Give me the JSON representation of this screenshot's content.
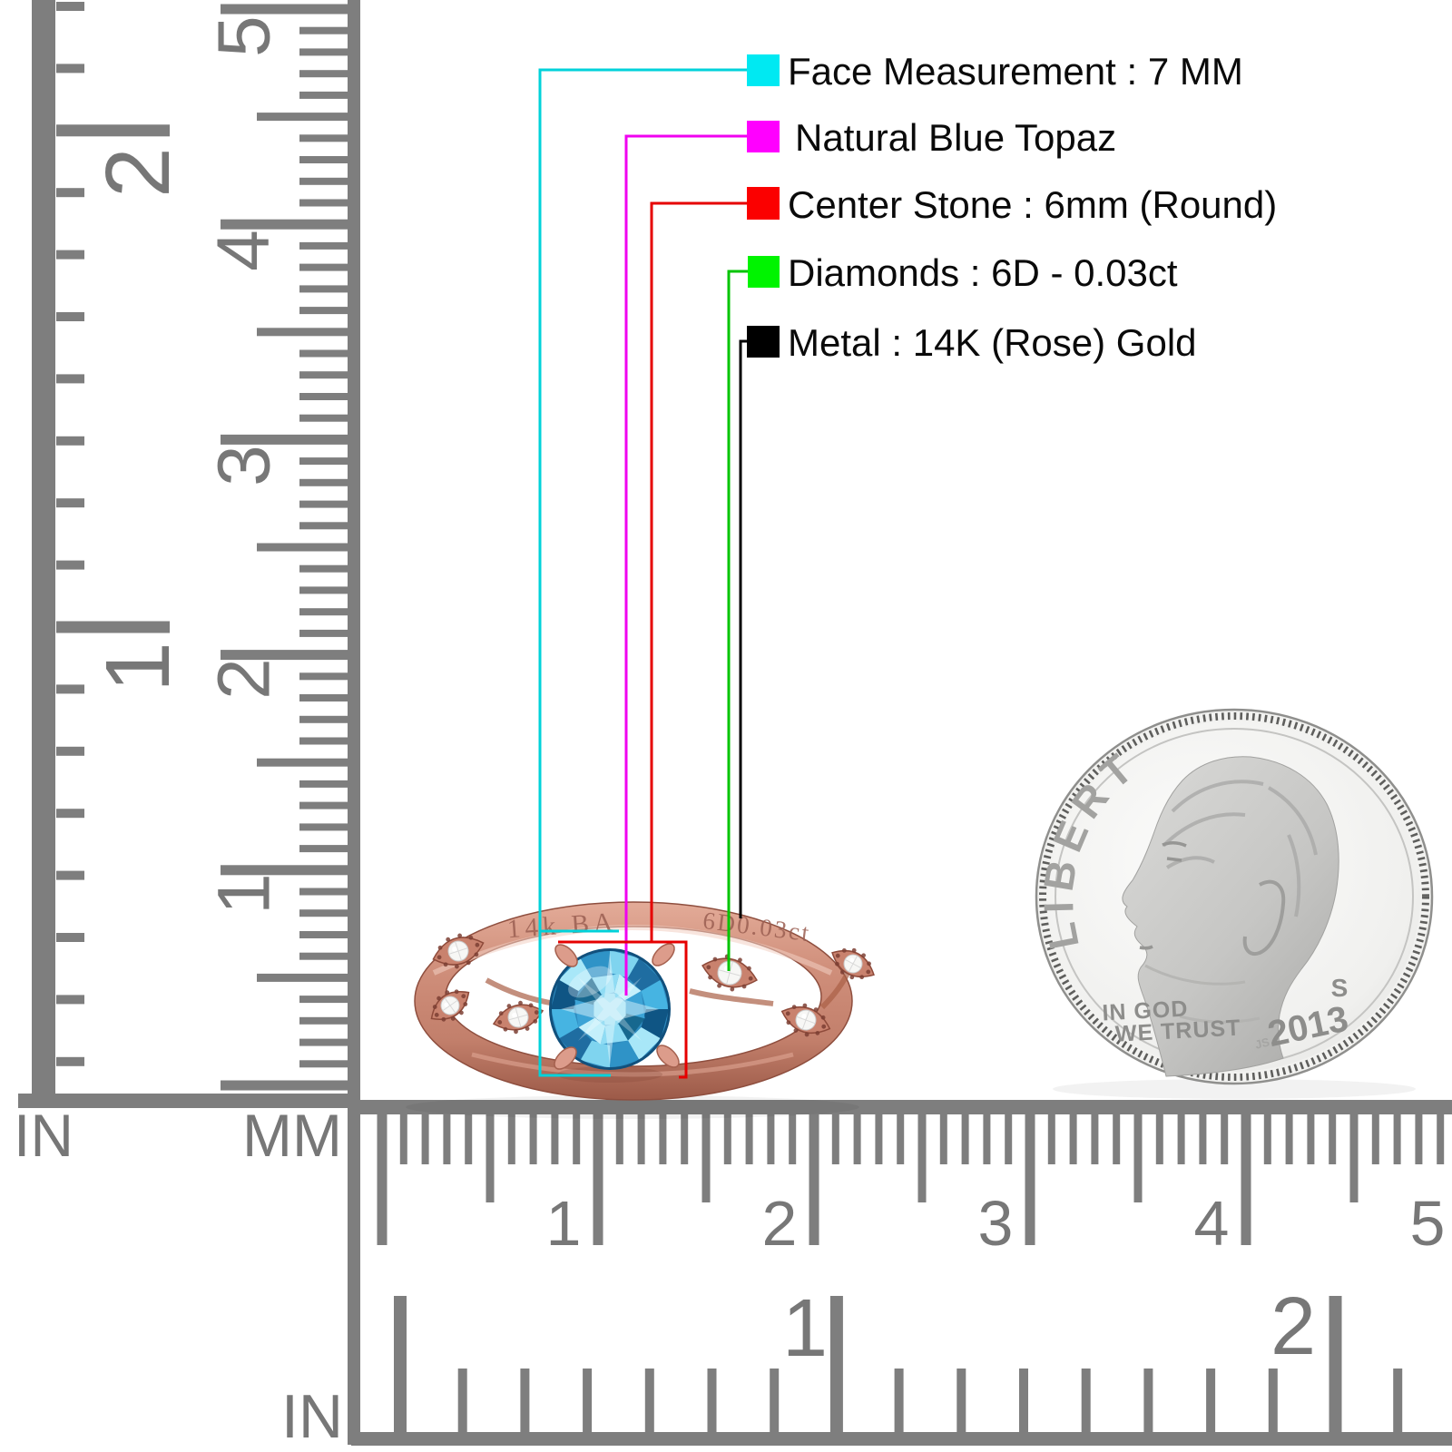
{
  "legend": {
    "items": [
      {
        "label": "Face Measurement : 7 MM",
        "swatch_color": "#00e9f2",
        "line_color": "#00d2da"
      },
      {
        "label": "Natural Blue Topaz",
        "swatch_color": "#ff00ff",
        "line_color": "#f000f0"
      },
      {
        "label": "Center Stone : 6mm (Round)",
        "swatch_color": "#fb0000",
        "line_color": "#e60000"
      },
      {
        "label": "Diamonds : 6D - 0.03ct",
        "swatch_color": "#00f400",
        "line_color": "#00c400"
      },
      {
        "label": "Metal : 14K (Rose) Gold",
        "swatch_color": "#000000",
        "line_color": "#000000"
      }
    ]
  },
  "ring": {
    "engraving_left": "14k BA",
    "engraving_right": "6D0.03ct"
  },
  "coin": {
    "liberty": "LIBERTY",
    "motto_line1": "IN GOD",
    "motto_line2": "WE TRUST",
    "year": "2013",
    "mint_mark": "S",
    "designer_initials": "JS"
  },
  "rulers": {
    "left_inch": {
      "unit_label": "IN",
      "numbers": [
        "1",
        "2"
      ]
    },
    "left_cm": {
      "unit_label": "MM",
      "numbers": [
        "1",
        "2",
        "3",
        "4",
        "5"
      ]
    },
    "bottom_cm": {
      "numbers": [
        "1",
        "2",
        "3",
        "4",
        "5"
      ]
    },
    "bottom_inch": {
      "unit_label": "IN",
      "numbers": [
        "1",
        "2"
      ]
    }
  },
  "colors": {
    "ruler_gray": "#7e7e7e",
    "number_gray": "#777777",
    "metal_rose": "#c9856f",
    "stone_blue": "#2e8bbf",
    "coin_silver": "#e9e9e7"
  }
}
